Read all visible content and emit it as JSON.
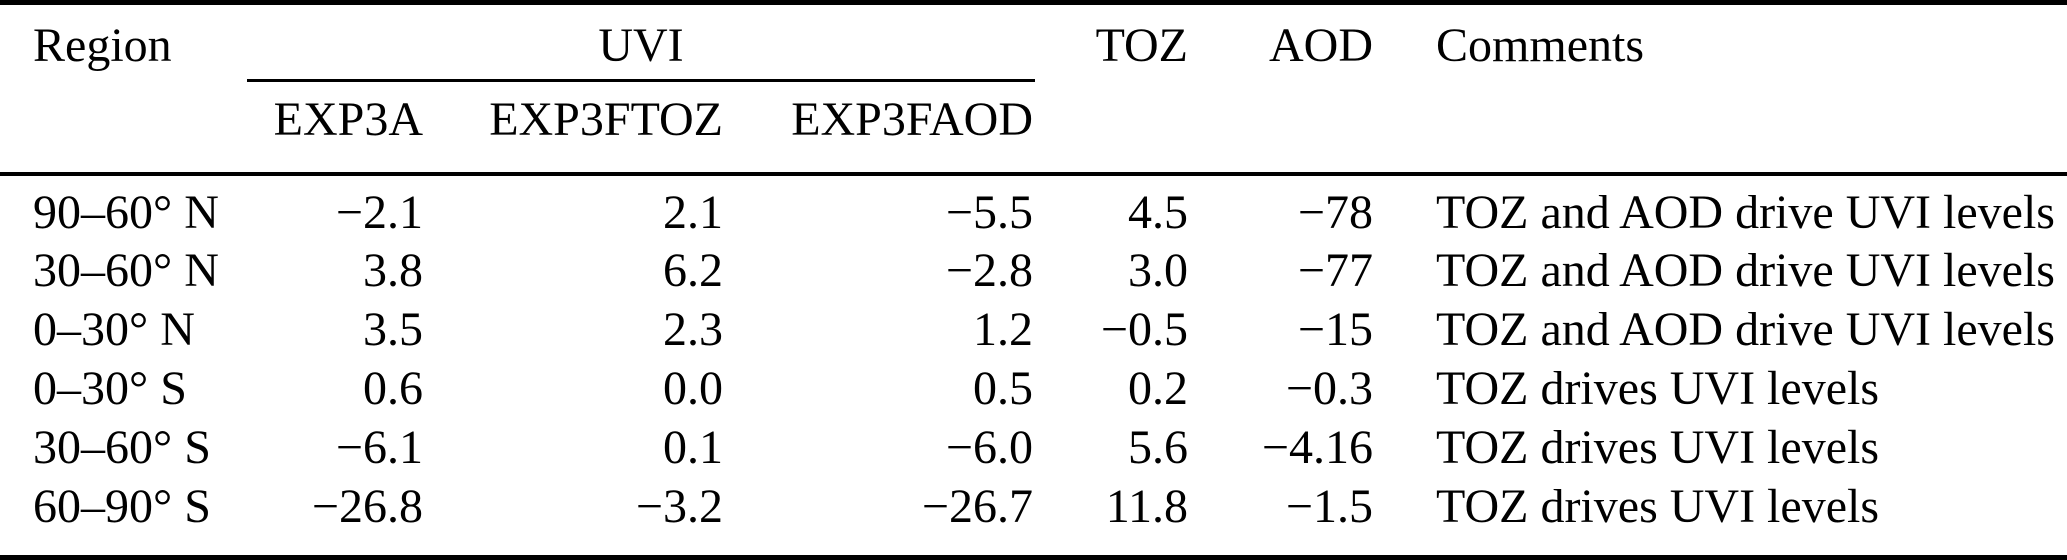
{
  "table": {
    "header": {
      "region": "Region",
      "uvi_group": "UVI",
      "subcolumns": [
        "EXP3A",
        "EXP3FTOZ",
        "EXP3FAOD"
      ],
      "toz": "TOZ",
      "aod": "AOD",
      "comments": "Comments"
    },
    "rows": [
      {
        "region": "90–60° N",
        "exp3a": "−2.1",
        "exp3ftoz": "2.1",
        "exp3faod": "−5.5",
        "toz": "4.5",
        "aod": "−78",
        "comments": "TOZ and AOD drive UVI levels"
      },
      {
        "region": "30–60° N",
        "exp3a": "3.8",
        "exp3ftoz": "6.2",
        "exp3faod": "−2.8",
        "toz": "3.0",
        "aod": "−77",
        "comments": "TOZ and AOD drive UVI levels"
      },
      {
        "region": "0–30° N",
        "exp3a": "3.5",
        "exp3ftoz": "2.3",
        "exp3faod": "1.2",
        "toz": "−0.5",
        "aod": "−15",
        "comments": "TOZ and AOD drive UVI levels"
      },
      {
        "region": "0–30° S",
        "exp3a": "0.6",
        "exp3ftoz": "0.0",
        "exp3faod": "0.5",
        "toz": "0.2",
        "aod": "−0.3",
        "comments": "TOZ drives UVI levels"
      },
      {
        "region": "30–60° S",
        "exp3a": "−6.1",
        "exp3ftoz": "0.1",
        "exp3faod": "−6.0",
        "toz": "5.6",
        "aod": "−4.16",
        "comments": "TOZ drives UVI levels"
      },
      {
        "region": "60–90° S",
        "exp3a": "−26.8",
        "exp3ftoz": "−3.2",
        "exp3faod": "−26.7",
        "toz": "11.8",
        "aod": "−1.5",
        "comments": "TOZ drives UVI levels"
      }
    ],
    "colors": {
      "text": "#000000",
      "background": "#ffffff",
      "rule": "#000000"
    }
  }
}
